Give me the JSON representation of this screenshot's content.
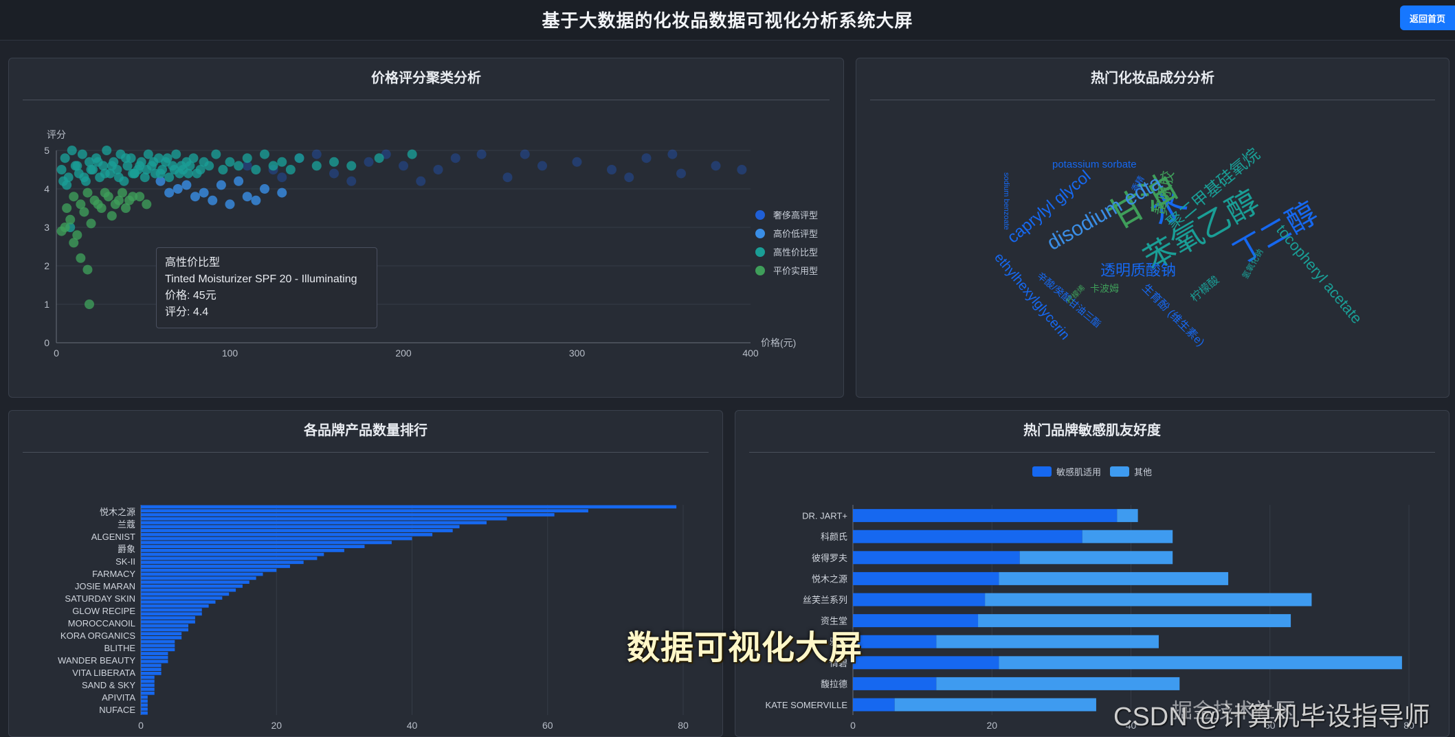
{
  "header": {
    "title": "基于大数据的化妆品数据可视化分析系统大屏",
    "home_button": "返回首页"
  },
  "panels": {
    "scatter": {
      "title": "价格评分聚类分析"
    },
    "wordcloud": {
      "title": "热门化妆品成分分析"
    },
    "brand_count": {
      "title": "各品牌产品数量排行"
    },
    "sensitive": {
      "title": "热门品牌敏感肌友好度"
    }
  },
  "tooltip": {
    "cluster": "高性价比型",
    "product": "Tinted Moisturizer SPF 20 - Illuminating",
    "price": "价格: 45元",
    "rating": "评分: 4.4"
  },
  "overlay_caption": "数据可视化大屏",
  "watermark": "CSDN @计算机毕设指导师",
  "watermark2": "掘金技术社区",
  "colors": {
    "luxury": "#1f5fd6",
    "high_price": "#3a8ee6",
    "value": "#1a9e96",
    "budget": "#3f9e5a",
    "sensitive_bar": "#1668f0",
    "other_bar": "#3e9bf0"
  },
  "chart_data": [
    {
      "type": "scatter",
      "xlabel": "价格(元)",
      "ylabel": "评分",
      "xlim": [
        0,
        400
      ],
      "ylim": [
        0,
        5
      ],
      "x_ticks": [
        "0",
        "100",
        "200",
        "300",
        "400"
      ],
      "y_ticks": [
        "0",
        "1",
        "2",
        "3",
        "4",
        "5"
      ],
      "legend_position": "right",
      "series": [
        {
          "name": "奢侈高评型",
          "color": "#1f5fd6",
          "points": [
            [
              110,
              4.6
            ],
            [
              125,
              4.5
            ],
            [
              140,
              4.8
            ],
            [
              160,
              4.4
            ],
            [
              180,
              4.7
            ],
            [
              200,
              4.6
            ],
            [
              220,
              4.5
            ],
            [
              245,
              4.9
            ],
            [
              260,
              4.3
            ],
            [
              280,
              4.6
            ],
            [
              300,
              4.7
            ],
            [
              320,
              4.5
            ],
            [
              340,
              4.8
            ],
            [
              360,
              4.4
            ],
            [
              380,
              4.6
            ],
            [
              395,
              4.5
            ],
            [
              150,
              4.9
            ],
            [
              170,
              4.2
            ],
            [
              230,
              4.8
            ],
            [
              270,
              4.9
            ],
            [
              130,
              4.3
            ],
            [
              190,
              4.9
            ],
            [
              210,
              4.2
            ],
            [
              330,
              4.3
            ],
            [
              355,
              4.9
            ]
          ]
        },
        {
          "name": "高价低评型",
          "color": "#3a8ee6",
          "points": [
            [
              70,
              4.0
            ],
            [
              85,
              3.9
            ],
            [
              95,
              4.1
            ],
            [
              110,
              3.8
            ],
            [
              120,
              4.0
            ],
            [
              90,
              3.7
            ],
            [
              60,
              4.2
            ],
            [
              100,
              3.6
            ],
            [
              130,
              3.9
            ],
            [
              75,
              4.1
            ],
            [
              105,
              4.2
            ],
            [
              115,
              3.7
            ],
            [
              80,
              3.8
            ],
            [
              65,
              3.9
            ]
          ]
        },
        {
          "name": "高性价比型",
          "color": "#1a9e96",
          "points": [
            [
              3,
              4.5
            ],
            [
              5,
              4.8
            ],
            [
              7,
              4.3
            ],
            [
              9,
              5.0
            ],
            [
              11,
              4.6
            ],
            [
              13,
              4.4
            ],
            [
              15,
              4.9
            ],
            [
              17,
              4.2
            ],
            [
              19,
              4.7
            ],
            [
              21,
              4.5
            ],
            [
              23,
              4.8
            ],
            [
              25,
              4.3
            ],
            [
              27,
              4.6
            ],
            [
              29,
              5.0
            ],
            [
              31,
              4.4
            ],
            [
              33,
              4.7
            ],
            [
              35,
              4.5
            ],
            [
              37,
              4.9
            ],
            [
              39,
              4.2
            ],
            [
              41,
              4.6
            ],
            [
              43,
              4.8
            ],
            [
              45,
              4.4
            ],
            [
              47,
              4.5
            ],
            [
              49,
              4.7
            ],
            [
              51,
              4.3
            ],
            [
              53,
              4.9
            ],
            [
              55,
              4.6
            ],
            [
              57,
              4.4
            ],
            [
              59,
              4.8
            ],
            [
              61,
              4.5
            ],
            [
              63,
              4.7
            ],
            [
              65,
              4.3
            ],
            [
              67,
              4.6
            ],
            [
              69,
              4.9
            ],
            [
              71,
              4.4
            ],
            [
              73,
              4.5
            ],
            [
              75,
              4.7
            ],
            [
              77,
              4.6
            ],
            [
              79,
              4.8
            ],
            [
              81,
              4.4
            ],
            [
              83,
              4.5
            ],
            [
              85,
              4.7
            ],
            [
              88,
              4.6
            ],
            [
              92,
              4.9
            ],
            [
              96,
              4.5
            ],
            [
              100,
              4.7
            ],
            [
              105,
              4.6
            ],
            [
              110,
              4.8
            ],
            [
              115,
              4.5
            ],
            [
              120,
              4.9
            ],
            [
              125,
              4.6
            ],
            [
              130,
              4.7
            ],
            [
              135,
              4.5
            ],
            [
              140,
              4.8
            ],
            [
              150,
              4.6
            ],
            [
              160,
              4.7
            ],
            [
              170,
              4.6
            ],
            [
              186,
              4.8
            ],
            [
              205,
              4.9
            ],
            [
              4,
              4.2
            ],
            [
              6,
              4.1
            ],
            [
              8,
              3.0
            ],
            [
              12,
              4.6
            ],
            [
              16,
              4.3
            ],
            [
              20,
              4.5
            ],
            [
              24,
              4.7
            ],
            [
              28,
              4.4
            ],
            [
              32,
              4.6
            ],
            [
              36,
              4.3
            ],
            [
              40,
              4.8
            ],
            [
              44,
              4.4
            ],
            [
              48,
              4.6
            ],
            [
              52,
              4.5
            ],
            [
              56,
              4.7
            ],
            [
              60,
              4.4
            ],
            [
              64,
              4.8
            ],
            [
              68,
              4.5
            ],
            [
              72,
              4.6
            ],
            [
              76,
              4.4
            ],
            [
              45,
              4.4
            ]
          ]
        },
        {
          "name": "平价实用型",
          "color": "#3f9e5a",
          "points": [
            [
              6,
              3.5
            ],
            [
              10,
              3.8
            ],
            [
              14,
              3.6
            ],
            [
              18,
              3.9
            ],
            [
              22,
              3.7
            ],
            [
              26,
              3.5
            ],
            [
              30,
              3.8
            ],
            [
              34,
              3.6
            ],
            [
              38,
              3.9
            ],
            [
              42,
              3.7
            ],
            [
              8,
              3.2
            ],
            [
              12,
              2.8
            ],
            [
              16,
              3.4
            ],
            [
              20,
              3.1
            ],
            [
              24,
              3.6
            ],
            [
              28,
              3.9
            ],
            [
              32,
              3.3
            ],
            [
              36,
              3.7
            ],
            [
              40,
              3.5
            ],
            [
              44,
              3.8
            ],
            [
              18,
              1.9
            ],
            [
              10,
              2.6
            ],
            [
              14,
              2.2
            ],
            [
              5,
              3.0
            ],
            [
              3,
              2.9
            ],
            [
              19,
              1.0
            ],
            [
              48,
              3.8
            ],
            [
              52,
              3.6
            ]
          ]
        }
      ]
    },
    {
      "type": "bar",
      "orientation": "horizontal",
      "xlim": [
        0,
        80
      ],
      "x_ticks": [
        "0",
        "20",
        "40",
        "60",
        "80"
      ],
      "y_labels": [
        "悦木之源",
        "兰蔻",
        "ALGENIST",
        "爵象",
        "SK-II",
        "FARMACY",
        "JOSIE MARAN",
        "SATURDAY SKIN",
        "GLOW RECIPE",
        "MOROCCANOIL",
        "KORA ORGANICS",
        "BLITHE",
        "WANDER BEAUTY",
        "VITA LIBERATA",
        "SAND & SKY",
        "APIVITA",
        "NUFACE"
      ],
      "values": [
        79,
        66,
        61,
        54,
        51,
        47,
        46,
        43,
        40,
        37,
        33,
        30,
        27,
        26,
        24,
        22,
        20,
        18,
        17,
        16,
        15,
        14,
        13,
        12,
        11,
        10,
        9,
        9,
        8,
        8,
        7,
        7,
        6,
        6,
        5,
        5,
        5,
        4,
        4,
        4,
        3,
        3,
        3,
        2,
        2,
        2,
        2,
        2,
        1,
        1,
        1,
        1,
        1
      ]
    },
    {
      "type": "bar",
      "orientation": "horizontal",
      "stacked": true,
      "xlim": [
        0,
        80
      ],
      "x_ticks": [
        "0",
        "20",
        "40",
        "60",
        "80"
      ],
      "legend_position": "top",
      "categories": [
        "DR. JART+",
        "科颜氏",
        "彼得罗夫",
        "悦木之源",
        "丝芙兰系列",
        "资生堂",
        "雅诗",
        "倩碧",
        "馥拉德",
        "KATE SOMERVILLE"
      ],
      "series": [
        {
          "name": "敏感肌适用",
          "values": [
            38,
            33,
            24,
            21,
            19,
            18,
            12,
            21,
            12,
            6
          ]
        },
        {
          "name": "其他",
          "values": [
            3,
            13,
            22,
            33,
            47,
            45,
            32,
            58,
            35,
            29
          ]
        }
      ]
    }
  ],
  "wordcloud": {
    "words": [
      {
        "text": "苯氧乙醇",
        "color": "#1a9e96"
      },
      {
        "text": "丁二醇",
        "color": "#1668f0"
      },
      {
        "text": "水",
        "color": "#1668f0"
      },
      {
        "text": "甘油",
        "color": "#3f9e5a"
      },
      {
        "text": "透明质酸钠",
        "color": "#1668f0"
      },
      {
        "text": "disodium edta",
        "color": "#3a8ee6"
      },
      {
        "text": "caprylyl glycol",
        "color": "#1668f0"
      },
      {
        "text": "tocopheryl acetate",
        "color": "#1a9e96"
      },
      {
        "text": "聚二甲基硅氧烷",
        "color": "#1a9e96"
      },
      {
        "text": "黄原胶",
        "color": "#3f9e5a"
      },
      {
        "text": "ethylhexylglycerin",
        "color": "#1668f0"
      },
      {
        "text": "potassium sorbate",
        "color": "#1668f0"
      },
      {
        "text": "生育酚 (维生素e)",
        "color": "#1668f0"
      },
      {
        "text": "柠檬酸",
        "color": "#1a9e96"
      },
      {
        "text": "sodium benzoate",
        "color": "#1668f0"
      },
      {
        "text": "辛酸/癸酸甘油三酯",
        "color": "#1668f0"
      },
      {
        "text": "卡波姆",
        "color": "#3f9e5a"
      },
      {
        "text": "柠檬烯",
        "color": "#3f9e5a"
      },
      {
        "text": "香精",
        "color": "#1668f0"
      },
      {
        "text": "氢氧化钠",
        "color": "#1a9e96"
      }
    ]
  }
}
